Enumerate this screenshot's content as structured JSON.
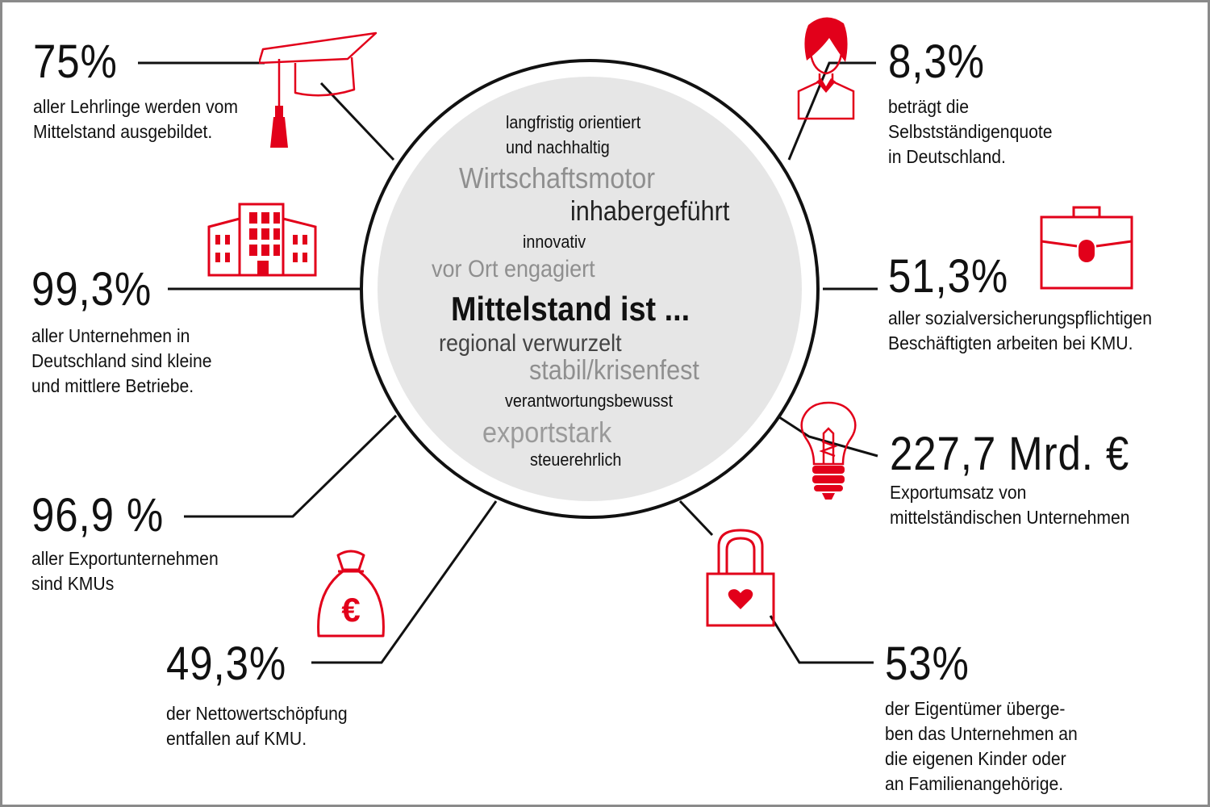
{
  "center": {
    "words": [
      "langfristig orientiert",
      "und nachhaltig",
      "Wirtschaftsmotor",
      "inhabergeführt",
      "innovativ",
      "vor Ort engagiert",
      "Mittelstand ist ...",
      "regional verwurzelt",
      "stabil/krisenfest",
      "verantwortungsbewusst",
      "exportstark",
      "steuerehrlich"
    ]
  },
  "stats": [
    {
      "value": "75%",
      "lines": [
        "aller Lehrlinge werden vom",
        "Mittelstand ausgebildet."
      ],
      "icon": "graduation-cap-icon"
    },
    {
      "value": "99,3%",
      "lines": [
        "aller Unternehmen in",
        "Deutschland sind kleine",
        "und mittlere Betriebe."
      ],
      "icon": "building-icon"
    },
    {
      "value": "96,9 %",
      "lines": [
        "aller Exportunternehmen",
        "sind KMUs"
      ],
      "icon": ""
    },
    {
      "value": "49,3%",
      "lines": [
        "der Nettowertschöpfung",
        "entfallen auf KMU."
      ],
      "icon": "money-bag-euro-icon"
    },
    {
      "value": "8,3%",
      "lines": [
        "beträgt die",
        "Selbstständigenquote",
        "in Deutschland."
      ],
      "icon": "person-icon"
    },
    {
      "value": "51,3%",
      "lines": [
        "aller sozialversicherungspflichtigen",
        "Beschäftigten arbeiten bei KMU."
      ],
      "icon": "briefcase-icon"
    },
    {
      "value": "227,7 Mrd. €",
      "lines": [
        "Exportumsatz von",
        "mittelständischen Unternehmen"
      ],
      "icon": "light-bulb-icon"
    },
    {
      "value": "53%",
      "lines": [
        "der Eigentümer überge-",
        "ben das Unternehmen an",
        "die eigenen Kinder oder",
        "an Familienangehörige."
      ],
      "icon": "padlock-heart-icon"
    }
  ],
  "colors": {
    "accent": "#e2001a",
    "text": "#111111",
    "circle_fill": "#e6e6e6",
    "grey_word": "#8f8f8f",
    "frame": "#8a8a8a"
  },
  "euro_symbol": "€"
}
